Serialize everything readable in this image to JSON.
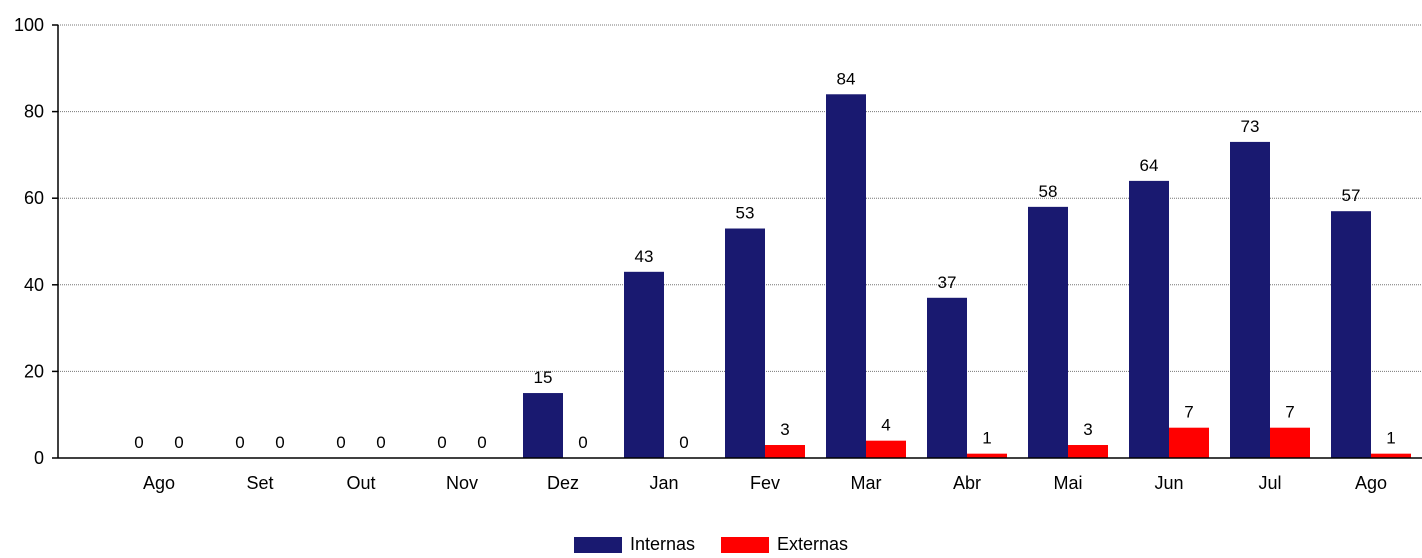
{
  "chart_data": {
    "type": "bar",
    "categories": [
      "Ago",
      "Set",
      "Out",
      "Nov",
      "Dez",
      "Jan",
      "Fev",
      "Mar",
      "Abr",
      "Mai",
      "Jun",
      "Jul",
      "Ago"
    ],
    "series": [
      {
        "name": "Internas",
        "color": "#191970",
        "values": [
          0,
          0,
          0,
          0,
          15,
          43,
          53,
          84,
          37,
          58,
          64,
          73,
          57
        ]
      },
      {
        "name": "Externas",
        "color": "#ff0000",
        "values": [
          0,
          0,
          0,
          0,
          0,
          0,
          3,
          4,
          1,
          3,
          7,
          7,
          1
        ]
      }
    ],
    "y_ticks": [
      "0",
      "20",
      "40",
      "60",
      "80",
      "100"
    ],
    "ylim": [
      0,
      100
    ],
    "grid": true,
    "legend_position": "bottom-center"
  }
}
